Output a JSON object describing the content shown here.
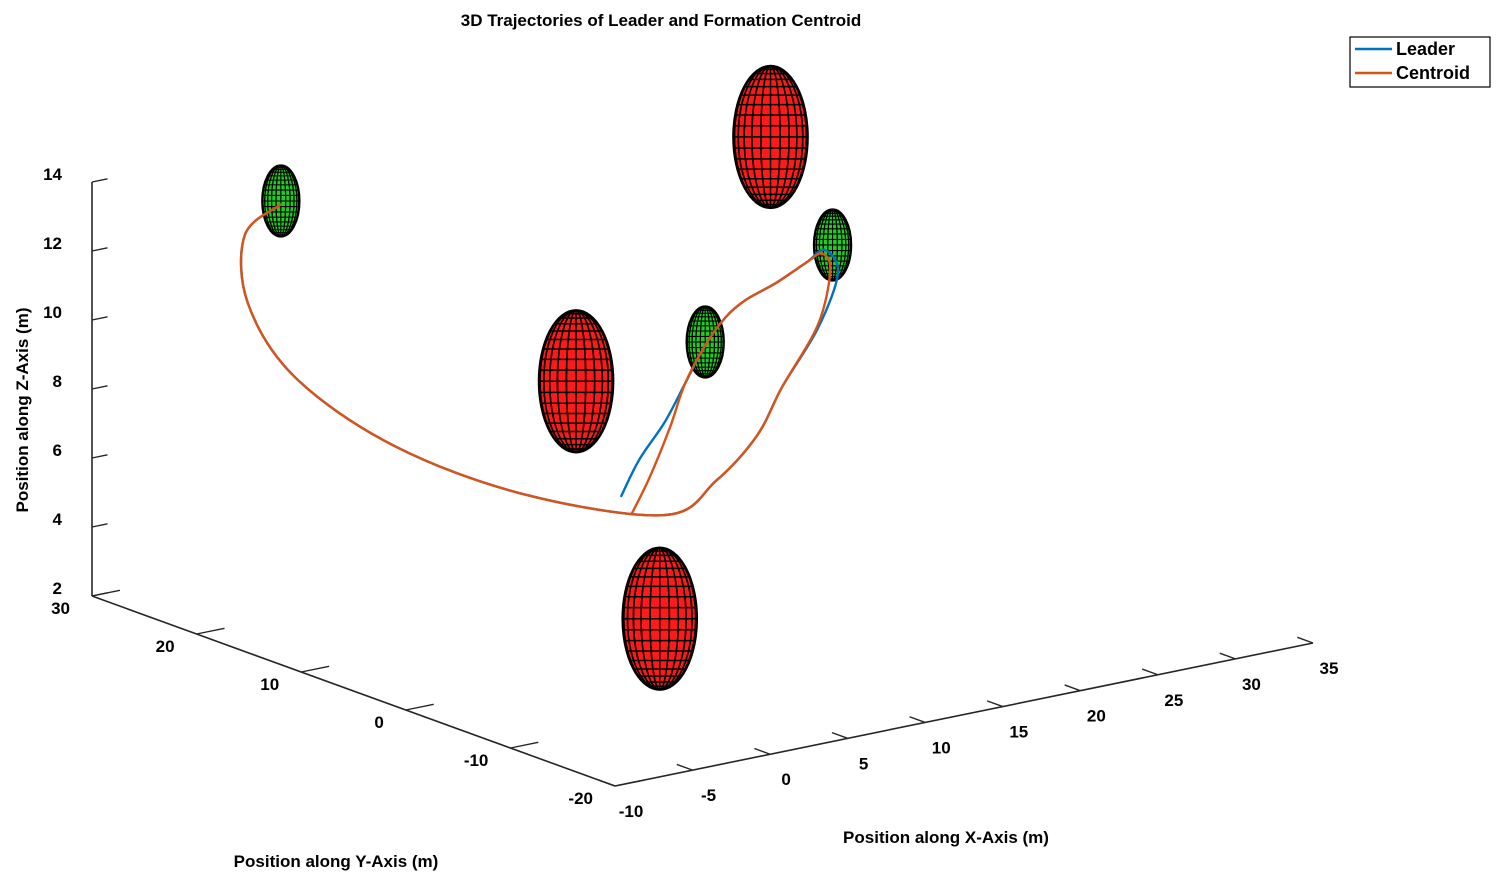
{
  "chart_data": {
    "type": "line",
    "title": "3D Trajectories of Leader and Formation Centroid",
    "xlabel": "Position along X-Axis (m)",
    "ylabel": "Position along Y-Axis (m)",
    "zlabel": "Position along Z-Axis (m)",
    "xlim": [
      -10,
      35
    ],
    "ylim": [
      -20,
      30
    ],
    "zlim": [
      2,
      14
    ],
    "x_ticks": [
      "-10",
      "-5",
      "0",
      "5",
      "10",
      "15",
      "20",
      "25",
      "30",
      "35"
    ],
    "y_ticks": [
      "-20",
      "-10",
      "0",
      "10",
      "20",
      "30"
    ],
    "z_ticks": [
      "2",
      "4",
      "6",
      "8",
      "10",
      "12",
      "14"
    ],
    "legend": {
      "position": "top-right",
      "entries": [
        "Leader",
        "Centroid"
      ]
    },
    "colors": {
      "leader": "#0072BD",
      "centroid": "#D95319",
      "obstacle": "#ff1a1a",
      "waypoint": "#22cc22",
      "mesh": "#000000"
    },
    "series": [
      {
        "name": "Leader",
        "x": [
          -1.5,
          1.0,
          4.0,
          8.0,
          12.0,
          16.0,
          20.0,
          24.0,
          28.0,
          30.5,
          30.0,
          26.0,
          21.0,
          16.0,
          10.0,
          4.0,
          -1.0,
          -4.0,
          -5.0,
          -4.0,
          -1.5,
          1.5
        ],
        "y": [
          -8.0,
          -6.0,
          -4.0,
          0.0,
          4.0,
          8.0,
          12.0,
          15.0,
          18.0,
          20.0,
          18.0,
          14.0,
          10.0,
          5.0,
          0.0,
          -4.0,
          2.0,
          10.0,
          18.0,
          24.0,
          28.0,
          29.0
        ],
        "z": [
          8.3,
          8.9,
          9.5,
          9.8,
          10.1,
          10.1,
          9.8,
          9.6,
          9.5,
          9.4,
          9.0,
          8.2,
          7.4,
          7.0,
          6.8,
          6.8,
          7.2,
          8.0,
          9.2,
          10.6,
          11.9,
          12.4
        ]
      },
      {
        "name": "Centroid",
        "x": [
          -1.5,
          1.0,
          4.0,
          8.0,
          12.0,
          16.0,
          20.0,
          24.0,
          28.0,
          30.0,
          29.5,
          26.0,
          21.0,
          16.0,
          10.0,
          4.0,
          -1.0,
          -4.0,
          -5.0,
          -4.0,
          -1.5,
          1.5
        ],
        "y": [
          -9.0,
          -7.0,
          -4.5,
          0.0,
          4.0,
          8.0,
          12.0,
          15.0,
          18.0,
          19.5,
          18.0,
          14.0,
          10.0,
          5.0,
          0.0,
          -4.0,
          2.0,
          10.0,
          18.0,
          24.0,
          28.0,
          29.0
        ],
        "z": [
          7.9,
          8.5,
          9.4,
          9.8,
          10.1,
          10.1,
          9.8,
          9.6,
          9.5,
          9.4,
          9.1,
          8.3,
          7.4,
          7.0,
          6.8,
          6.8,
          7.2,
          8.0,
          9.2,
          10.6,
          11.9,
          12.4
        ]
      }
    ],
    "obstacles": [
      {
        "name": "obstacle-1",
        "x": 3.0,
        "y": 3.0,
        "z": 10.0,
        "r": 2.0,
        "color": "red"
      },
      {
        "name": "obstacle-2",
        "x": 27.0,
        "y": 20.0,
        "z": 13.0,
        "r": 2.0,
        "color": "red"
      },
      {
        "name": "obstacle-3",
        "x": 3.0,
        "y": -5.0,
        "z": 4.0,
        "r": 2.0,
        "color": "red"
      }
    ],
    "waypoints": [
      {
        "name": "waypoint-1",
        "x": 1.5,
        "y": 29.0,
        "z": 12.5,
        "r": 1.0,
        "color": "green"
      },
      {
        "name": "waypoint-2",
        "x": 12.0,
        "y": 4.0,
        "z": 10.2,
        "r": 1.0,
        "color": "green"
      },
      {
        "name": "waypoint-3",
        "x": 31.0,
        "y": 20.0,
        "z": 9.5,
        "r": 1.0,
        "color": "green"
      }
    ]
  }
}
